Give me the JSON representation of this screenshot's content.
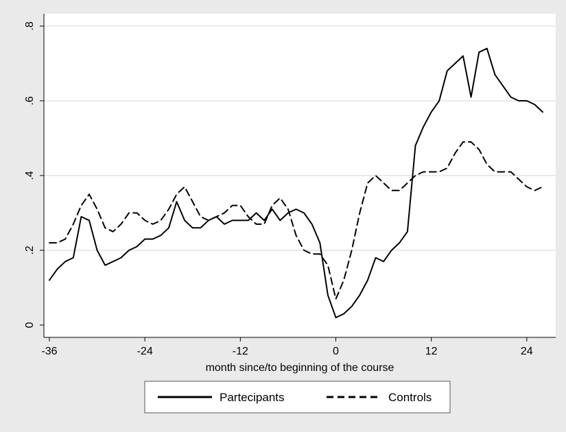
{
  "chart_data": {
    "type": "line",
    "title": "",
    "xlabel": "month since/to beginning of the course",
    "ylabel": "",
    "xlim": [
      -36,
      26
    ],
    "ylim": [
      0,
      0.8
    ],
    "x_ticks": [
      -36,
      -24,
      -12,
      0,
      12,
      24
    ],
    "x_tick_labels": [
      "-36",
      "-24",
      "-12",
      "0",
      "12",
      "24"
    ],
    "y_ticks": [
      0,
      0.2,
      0.4,
      0.6,
      0.8
    ],
    "y_tick_labels": [
      "0",
      ".2",
      ".4",
      ".6",
      ".8"
    ],
    "grid": "horizontal",
    "legend_position": "bottom",
    "series": [
      {
        "name": "Partecipants",
        "style": "solid",
        "color": "#000000",
        "x": [
          -36,
          -35,
          -34,
          -33,
          -32,
          -31,
          -30,
          -29,
          -28,
          -27,
          -26,
          -25,
          -24,
          -23,
          -22,
          -21,
          -20,
          -19,
          -18,
          -17,
          -16,
          -15,
          -14,
          -13,
          -12,
          -11,
          -10,
          -9,
          -8,
          -7,
          -6,
          -5,
          -4,
          -3,
          -2,
          -1,
          0,
          1,
          2,
          3,
          4,
          5,
          6,
          7,
          8,
          9,
          10,
          11,
          12,
          13,
          14,
          15,
          16,
          17,
          18,
          19,
          20,
          21,
          22,
          23,
          24,
          25,
          26
        ],
        "values": [
          0.12,
          0.15,
          0.17,
          0.18,
          0.29,
          0.28,
          0.2,
          0.16,
          0.17,
          0.18,
          0.2,
          0.21,
          0.23,
          0.23,
          0.24,
          0.26,
          0.33,
          0.28,
          0.26,
          0.26,
          0.28,
          0.29,
          0.27,
          0.28,
          0.28,
          0.28,
          0.3,
          0.28,
          0.31,
          0.28,
          0.3,
          0.31,
          0.3,
          0.27,
          0.22,
          0.08,
          0.02,
          0.03,
          0.05,
          0.08,
          0.12,
          0.18,
          0.17,
          0.2,
          0.22,
          0.25,
          0.48,
          0.53,
          0.57,
          0.6,
          0.68,
          0.7,
          0.72,
          0.61,
          0.73,
          0.74,
          0.67,
          0.64,
          0.61,
          0.6,
          0.6,
          0.59,
          0.57
        ]
      },
      {
        "name": "Controls",
        "style": "dashed",
        "color": "#000000",
        "x": [
          -36,
          -35,
          -34,
          -33,
          -32,
          -31,
          -30,
          -29,
          -28,
          -27,
          -26,
          -25,
          -24,
          -23,
          -22,
          -21,
          -20,
          -19,
          -18,
          -17,
          -16,
          -15,
          -14,
          -13,
          -12,
          -11,
          -10,
          -9,
          -8,
          -7,
          -6,
          -5,
          -4,
          -3,
          -2,
          -1,
          0,
          1,
          2,
          3,
          4,
          5,
          6,
          7,
          8,
          9,
          10,
          11,
          12,
          13,
          14,
          15,
          16,
          17,
          18,
          19,
          20,
          21,
          22,
          23,
          24,
          25,
          26
        ],
        "values": [
          0.22,
          0.22,
          0.23,
          0.27,
          0.32,
          0.35,
          0.31,
          0.26,
          0.25,
          0.27,
          0.3,
          0.3,
          0.28,
          0.27,
          0.28,
          0.31,
          0.35,
          0.37,
          0.33,
          0.29,
          0.28,
          0.29,
          0.3,
          0.32,
          0.32,
          0.29,
          0.27,
          0.27,
          0.32,
          0.34,
          0.31,
          0.24,
          0.2,
          0.19,
          0.19,
          0.16,
          0.07,
          0.12,
          0.2,
          0.3,
          0.38,
          0.4,
          0.38,
          0.36,
          0.36,
          0.38,
          0.4,
          0.41,
          0.41,
          0.41,
          0.42,
          0.46,
          0.49,
          0.49,
          0.47,
          0.43,
          0.41,
          0.41,
          0.41,
          0.39,
          0.37,
          0.36,
          0.37
        ]
      }
    ]
  }
}
